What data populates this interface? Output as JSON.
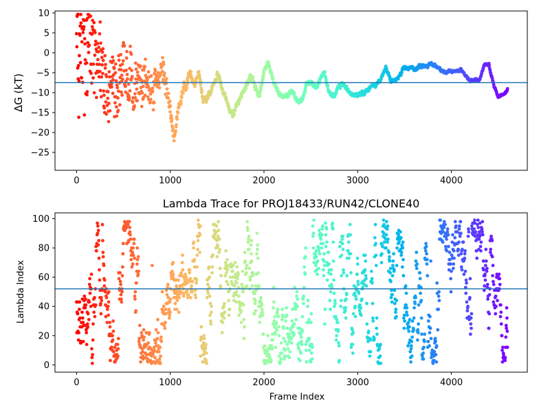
{
  "chart_data": [
    {
      "type": "scatter",
      "title": "",
      "xlabel": "",
      "ylabel": "ΔG (kT)",
      "xlim": [
        -230,
        4810
      ],
      "ylim": [
        -29.5,
        10.5
      ],
      "xticks": [
        0,
        1000,
        2000,
        3000,
        4000
      ],
      "xtick_labels": [
        "0",
        "1000",
        "2000",
        "3000",
        "4000"
      ],
      "yticks": [
        10,
        5,
        0,
        -5,
        -10,
        -15,
        -20,
        -25
      ],
      "ytick_labels": [
        "10",
        "5",
        "0",
        "−5",
        "−10",
        "−15",
        "−20",
        "−25"
      ],
      "reference_line": {
        "y": -7.5,
        "color": "#1f77b4"
      },
      "colormap": "rainbow (red at frame 0 to violet at final frame)",
      "grid": false,
      "legend": "none",
      "n_frames": 4600,
      "trend_x": [
        0,
        100,
        200,
        300,
        400,
        500,
        600,
        700,
        800,
        900,
        1000,
        1050,
        1100,
        1150,
        1200,
        1250,
        1300,
        1350,
        1400,
        1450,
        1500,
        1550,
        1600,
        1650,
        1700,
        1750,
        1800,
        1850,
        1900,
        1950,
        2000,
        2050,
        2100,
        2150,
        2200,
        2250,
        2300,
        2350,
        2400,
        2450,
        2500,
        2550,
        2600,
        2650,
        2700,
        2750,
        2800,
        2850,
        2900,
        2950,
        3000,
        3100,
        3200,
        3300,
        3350,
        3400,
        3450,
        3500,
        3600,
        3700,
        3800,
        3900,
        3950,
        4000,
        4100,
        4200,
        4250,
        4300,
        4350,
        4400,
        4450,
        4500,
        4550,
        4600
      ],
      "trend_y": [
        0,
        2,
        0,
        -3,
        -6,
        -3,
        -5,
        -8,
        -10,
        -7,
        -15,
        -21,
        -14,
        -9,
        -7,
        -8,
        -4,
        -12,
        -11,
        -8,
        -5,
        -9,
        -12,
        -15,
        -14,
        -11,
        -9,
        -5,
        -8,
        -11,
        -5,
        -3,
        -7,
        -10,
        -11,
        -11,
        -9,
        -12,
        -12,
        -8,
        -7,
        -9,
        -7,
        -5,
        -10,
        -11,
        -9,
        -8,
        -10,
        -10,
        -10,
        -9,
        -8,
        -4,
        -7,
        -7,
        -6,
        -4,
        -4,
        -3,
        -3,
        -4,
        -5,
        -5,
        -4,
        -7,
        -7,
        -7,
        -3,
        -3,
        -8,
        -11,
        -10,
        -9
      ],
      "spread_x": [
        0,
        300,
        700,
        1000,
        1300,
        4600
      ],
      "spread_y": [
        18,
        9,
        6,
        3,
        1.2,
        0.5
      ]
    },
    {
      "type": "scatter",
      "title": "Lambda Trace for PROJ18433/RUN42/CLONE40",
      "xlabel": "Frame Index",
      "ylabel": "Lambda Index",
      "xlim": [
        -230,
        4810
      ],
      "ylim": [
        -5,
        104
      ],
      "xticks": [
        0,
        1000,
        2000,
        3000,
        4000
      ],
      "xtick_labels": [
        "0",
        "1000",
        "2000",
        "3000",
        "4000"
      ],
      "yticks": [
        0,
        20,
        40,
        60,
        80,
        100
      ],
      "ytick_labels": [
        "0",
        "20",
        "40",
        "60",
        "80",
        "100"
      ],
      "reference_line": {
        "y": 52,
        "color": "#1f77b4"
      },
      "colormap": "rainbow (red at frame 0 to violet at final frame)",
      "grid": false,
      "legend": "none",
      "n_frames": 4600,
      "value_range": [
        1,
        99
      ]
    }
  ]
}
